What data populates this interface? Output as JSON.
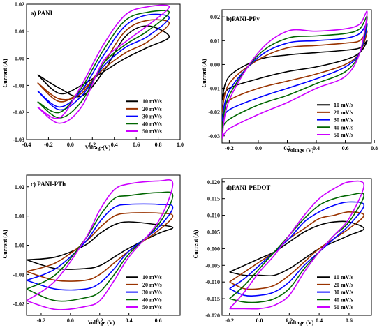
{
  "chart_data": [
    {
      "type": "line",
      "title": "a) PANI",
      "xlabel": "Voltage(V)",
      "ylabel": "Current (A)",
      "xlim": [
        -0.4,
        1.0
      ],
      "ylim": [
        -0.03,
        0.02
      ],
      "xticks": [
        "-0.4",
        "-0.2",
        "0.0",
        "0.2",
        "0.4",
        "0.6",
        "0.8",
        "1.0"
      ],
      "yticks": [
        "-0.03",
        "-0.02",
        "-0.01",
        "0.00",
        "0.01",
        "0.02"
      ],
      "legend": "bottom-right",
      "series": [
        {
          "name": "10 mV/s",
          "color": "#000000",
          "x": [
            -0.3,
            -0.1,
            0.1,
            0.3,
            0.5,
            0.7,
            0.9,
            0.7,
            0.5,
            0.3,
            0.1,
            -0.1,
            -0.3
          ],
          "y": [
            -0.006,
            -0.011,
            -0.014,
            -0.005,
            0.008,
            0.012,
            0.008,
            0.004,
            0.0,
            -0.005,
            -0.01,
            -0.013,
            -0.006
          ]
        },
        {
          "name": "20 mV/s",
          "color": "#993300",
          "x": [
            -0.3,
            -0.1,
            0.1,
            0.3,
            0.5,
            0.7,
            0.9,
            0.7,
            0.5,
            0.3,
            0.1,
            -0.1,
            -0.3
          ],
          "y": [
            -0.009,
            -0.015,
            -0.013,
            -0.002,
            0.01,
            0.014,
            0.013,
            0.006,
            0.002,
            -0.004,
            -0.012,
            -0.016,
            -0.009
          ]
        },
        {
          "name": "30 mV/s",
          "color": "#0000ff",
          "x": [
            -0.3,
            -0.1,
            0.1,
            0.3,
            0.5,
            0.7,
            0.9,
            0.7,
            0.5,
            0.3,
            0.1,
            -0.1,
            -0.3
          ],
          "y": [
            -0.012,
            -0.018,
            -0.012,
            0.001,
            0.012,
            0.016,
            0.015,
            0.008,
            0.004,
            -0.003,
            -0.014,
            -0.019,
            -0.012
          ]
        },
        {
          "name": "40 mV/s",
          "color": "#006600",
          "x": [
            -0.3,
            -0.1,
            0.1,
            0.3,
            0.5,
            0.7,
            0.9,
            0.7,
            0.5,
            0.3,
            0.1,
            -0.1,
            -0.3
          ],
          "y": [
            -0.016,
            -0.02,
            -0.011,
            0.003,
            0.014,
            0.017,
            0.017,
            0.01,
            0.005,
            -0.002,
            -0.016,
            -0.022,
            -0.016
          ]
        },
        {
          "name": "50 mV/s",
          "color": "#cc00ff",
          "x": [
            -0.3,
            -0.1,
            0.1,
            0.3,
            0.5,
            0.7,
            0.9,
            0.7,
            0.5,
            0.3,
            0.1,
            -0.1,
            -0.3
          ],
          "y": [
            -0.018,
            -0.022,
            -0.01,
            0.005,
            0.016,
            0.019,
            0.019,
            0.012,
            0.006,
            -0.001,
            -0.018,
            -0.024,
            -0.018
          ]
        }
      ]
    },
    {
      "type": "line",
      "title": "b)PANI-PPy",
      "xlabel": "Voltage (V)",
      "ylabel": "Current (A)",
      "xlim": [
        -0.25,
        0.78
      ],
      "ylim": [
        -0.033,
        0.023
      ],
      "xticks": [
        "-0.2",
        "0.0",
        "0.2",
        "0.4",
        "0.6",
        "0.8"
      ],
      "yticks": [
        "-0.03",
        "-0.02",
        "-0.01",
        "0.00",
        "0.01",
        "0.02"
      ],
      "legend": "bottom-right",
      "series": [
        {
          "name": "10 mV/s",
          "color": "#000000",
          "x": [
            -0.25,
            -0.2,
            0.0,
            0.2,
            0.4,
            0.6,
            0.7,
            0.75,
            0.7,
            0.6,
            0.4,
            0.2,
            0.0,
            -0.2,
            -0.25
          ],
          "y": [
            -0.015,
            -0.005,
            0.002,
            0.004,
            0.005,
            0.006,
            0.007,
            0.01,
            0.005,
            0.002,
            -0.001,
            -0.003,
            -0.006,
            -0.01,
            -0.015
          ]
        },
        {
          "name": "20 mV/s",
          "color": "#993300",
          "x": [
            -0.25,
            -0.2,
            0.0,
            0.2,
            0.4,
            0.6,
            0.7,
            0.75,
            0.7,
            0.6,
            0.4,
            0.2,
            0.0,
            -0.2,
            -0.25
          ],
          "y": [
            -0.02,
            -0.008,
            0.002,
            0.007,
            0.008,
            0.009,
            0.01,
            0.014,
            0.005,
            0.0,
            -0.004,
            -0.007,
            -0.01,
            -0.015,
            -0.02
          ]
        },
        {
          "name": "30 mV/s",
          "color": "#0000ff",
          "x": [
            -0.25,
            -0.2,
            0.0,
            0.2,
            0.4,
            0.6,
            0.7,
            0.75,
            0.7,
            0.6,
            0.4,
            0.2,
            0.0,
            -0.2,
            -0.25
          ],
          "y": [
            -0.024,
            -0.011,
            0.003,
            0.009,
            0.01,
            0.011,
            0.013,
            0.017,
            0.005,
            -0.001,
            -0.006,
            -0.01,
            -0.014,
            -0.019,
            -0.024
          ]
        },
        {
          "name": "40 mV/s",
          "color": "#006600",
          "x": [
            -0.25,
            -0.2,
            0.0,
            0.2,
            0.4,
            0.6,
            0.7,
            0.75,
            0.7,
            0.6,
            0.4,
            0.2,
            0.0,
            -0.2,
            -0.25
          ],
          "y": [
            -0.027,
            -0.013,
            0.004,
            0.011,
            0.012,
            0.013,
            0.015,
            0.02,
            0.005,
            -0.003,
            -0.008,
            -0.013,
            -0.017,
            -0.023,
            -0.027
          ]
        },
        {
          "name": "50 mV/s",
          "color": "#cc00ff",
          "x": [
            -0.25,
            -0.2,
            0.0,
            0.2,
            0.4,
            0.6,
            0.7,
            0.75,
            0.7,
            0.6,
            0.4,
            0.2,
            0.0,
            -0.2,
            -0.25
          ],
          "y": [
            -0.031,
            -0.015,
            0.005,
            0.014,
            0.014,
            0.015,
            0.017,
            0.022,
            0.005,
            -0.005,
            -0.01,
            -0.016,
            -0.021,
            -0.027,
            -0.031
          ]
        }
      ]
    },
    {
      "type": "line",
      "title": "c) PANI-PTh",
      "xlabel": "Voltage (V)",
      "ylabel": "Current (A)",
      "xlim": [
        -0.3,
        0.75
      ],
      "ylim": [
        -0.024,
        0.024
      ],
      "xticks": [
        "-0.2",
        "0.0",
        "0.2",
        "0.4",
        "0.6"
      ],
      "yticks": [
        "-0.02",
        "-0.01",
        "0.00",
        "0.01",
        "0.02"
      ],
      "legend": "bottom-right",
      "series": [
        {
          "name": "10 mV/s",
          "color": "#000000",
          "x": [
            -0.3,
            -0.1,
            0.1,
            0.2,
            0.3,
            0.4,
            0.6,
            0.7,
            0.6,
            0.4,
            0.3,
            0.2,
            0.1,
            -0.1,
            -0.3
          ],
          "y": [
            -0.005,
            -0.004,
            0.0,
            0.004,
            0.007,
            0.008,
            0.007,
            0.006,
            0.004,
            -0.001,
            -0.004,
            -0.007,
            -0.008,
            -0.008,
            -0.005
          ]
        },
        {
          "name": "20 mV/s",
          "color": "#993300",
          "x": [
            -0.3,
            -0.1,
            0.1,
            0.2,
            0.3,
            0.4,
            0.6,
            0.7,
            0.6,
            0.4,
            0.3,
            0.2,
            0.1,
            -0.1,
            -0.3
          ],
          "y": [
            -0.009,
            -0.006,
            0.001,
            0.006,
            0.01,
            0.011,
            0.011,
            0.01,
            0.005,
            -0.002,
            -0.006,
            -0.01,
            -0.012,
            -0.012,
            -0.009
          ]
        },
        {
          "name": "30 mV/s",
          "color": "#0000ff",
          "x": [
            -0.3,
            -0.1,
            0.1,
            0.2,
            0.3,
            0.4,
            0.6,
            0.7,
            0.6,
            0.4,
            0.3,
            0.2,
            0.1,
            -0.1,
            -0.3
          ],
          "y": [
            -0.012,
            -0.008,
            0.001,
            0.008,
            0.013,
            0.014,
            0.014,
            0.013,
            0.006,
            -0.002,
            -0.008,
            -0.013,
            -0.015,
            -0.015,
            -0.012
          ]
        },
        {
          "name": "40 mV/s",
          "color": "#006600",
          "x": [
            -0.3,
            -0.1,
            0.1,
            0.2,
            0.3,
            0.4,
            0.6,
            0.7,
            0.6,
            0.4,
            0.3,
            0.2,
            0.1,
            -0.1,
            -0.3
          ],
          "y": [
            -0.015,
            -0.01,
            0.002,
            0.01,
            0.016,
            0.017,
            0.018,
            0.017,
            0.007,
            -0.003,
            -0.01,
            -0.016,
            -0.018,
            -0.019,
            -0.015
          ]
        },
        {
          "name": "50 mV/s",
          "color": "#cc00ff",
          "x": [
            -0.3,
            -0.1,
            0.1,
            0.2,
            0.3,
            0.4,
            0.6,
            0.7,
            0.6,
            0.4,
            0.3,
            0.2,
            0.1,
            -0.1,
            -0.3
          ],
          "y": [
            -0.019,
            -0.012,
            0.002,
            0.012,
            0.019,
            0.021,
            0.022,
            0.021,
            0.008,
            -0.004,
            -0.012,
            -0.019,
            -0.021,
            -0.022,
            -0.019
          ]
        }
      ]
    },
    {
      "type": "line",
      "title": "d)PANI-PEDOT",
      "xlabel": "Voltage (V)",
      "ylabel": "Current (A)",
      "xlim": [
        -0.25,
        0.75
      ],
      "ylim": [
        -0.02,
        0.021
      ],
      "xticks": [
        "-0.2",
        "0.0",
        "0.2",
        "0.4",
        "0.6"
      ],
      "yticks": [
        "-0.020",
        "-0.015",
        "-0.010",
        "-0.005",
        "0.000",
        "0.005",
        "0.010",
        "0.015",
        "0.020"
      ],
      "legend": "bottom-right",
      "series": [
        {
          "name": "10 mV/s",
          "color": "#000000",
          "x": [
            -0.2,
            -0.1,
            0.0,
            0.1,
            0.2,
            0.3,
            0.4,
            0.5,
            0.6,
            0.7,
            0.6,
            0.5,
            0.4,
            0.3,
            0.2,
            0.1,
            0.0,
            -0.1,
            -0.2
          ],
          "y": [
            -0.007,
            -0.005,
            -0.003,
            -0.001,
            0.002,
            0.005,
            0.007,
            0.008,
            0.008,
            0.006,
            0.004,
            0.002,
            0.0,
            -0.003,
            -0.006,
            -0.008,
            -0.008,
            -0.008,
            -0.007
          ]
        },
        {
          "name": "20 mV/s",
          "color": "#993300",
          "x": [
            -0.2,
            -0.1,
            0.0,
            0.1,
            0.2,
            0.3,
            0.4,
            0.5,
            0.6,
            0.7,
            0.6,
            0.5,
            0.4,
            0.3,
            0.2,
            0.1,
            0.0,
            -0.1,
            -0.2
          ],
          "y": [
            -0.01,
            -0.007,
            -0.004,
            -0.001,
            0.003,
            0.006,
            0.009,
            0.01,
            0.011,
            0.01,
            0.006,
            0.003,
            0.0,
            -0.004,
            -0.008,
            -0.011,
            -0.012,
            -0.012,
            -0.01
          ]
        },
        {
          "name": "30 mV/s",
          "color": "#0000ff",
          "x": [
            -0.2,
            -0.1,
            0.0,
            0.1,
            0.2,
            0.3,
            0.4,
            0.5,
            0.6,
            0.7,
            0.6,
            0.5,
            0.4,
            0.3,
            0.2,
            0.1,
            0.0,
            -0.1,
            -0.2
          ],
          "y": [
            -0.012,
            -0.009,
            -0.005,
            -0.001,
            0.003,
            0.008,
            0.011,
            0.013,
            0.014,
            0.013,
            0.007,
            0.003,
            -0.001,
            -0.005,
            -0.01,
            -0.013,
            -0.014,
            -0.014,
            -0.012
          ]
        },
        {
          "name": "40 mV/s",
          "color": "#006600",
          "x": [
            -0.2,
            -0.1,
            0.0,
            0.1,
            0.2,
            0.3,
            0.4,
            0.5,
            0.6,
            0.7,
            0.6,
            0.5,
            0.4,
            0.3,
            0.2,
            0.1,
            0.0,
            -0.1,
            -0.2
          ],
          "y": [
            -0.015,
            -0.011,
            -0.006,
            -0.001,
            0.004,
            0.009,
            0.013,
            0.015,
            0.016,
            0.016,
            0.008,
            0.004,
            -0.001,
            -0.006,
            -0.012,
            -0.015,
            -0.016,
            -0.016,
            -0.015
          ]
        },
        {
          "name": "50 mV/s",
          "color": "#cc00ff",
          "x": [
            -0.2,
            -0.1,
            0.0,
            0.1,
            0.2,
            0.3,
            0.4,
            0.5,
            0.6,
            0.7,
            0.6,
            0.5,
            0.4,
            0.3,
            0.2,
            0.1,
            0.0,
            -0.1,
            -0.2
          ],
          "y": [
            -0.018,
            -0.013,
            -0.007,
            -0.002,
            0.004,
            0.01,
            0.015,
            0.018,
            0.02,
            0.019,
            0.009,
            0.004,
            -0.001,
            -0.007,
            -0.014,
            -0.017,
            -0.018,
            -0.018,
            -0.018
          ]
        }
      ]
    }
  ]
}
